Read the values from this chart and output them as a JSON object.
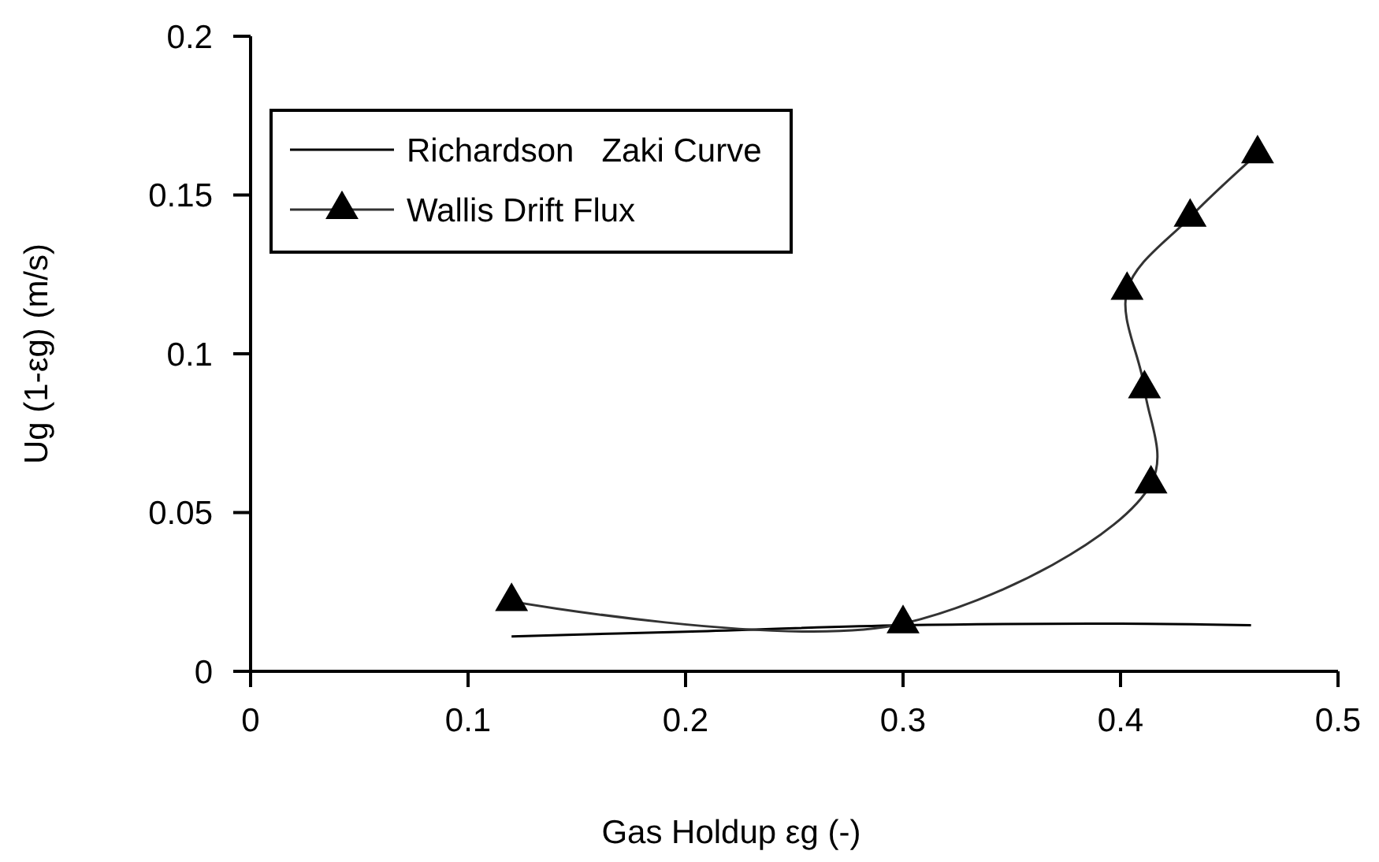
{
  "chart_data": {
    "type": "line",
    "xlabel": "Gas Holdup εg (-)",
    "ylabel": "Ug (1-εg) (m/s)",
    "xlim": [
      0,
      0.5
    ],
    "xticks": [
      0,
      0.1,
      0.2,
      0.3,
      0.4,
      0.5
    ],
    "ylim": [
      0,
      0.2
    ],
    "yticks": [
      0,
      0.05,
      0.1,
      0.15,
      0.2
    ],
    "grid": false,
    "legend": "top left",
    "series": [
      {
        "name": "Richardson   Zaki Curve",
        "color": "#000000",
        "marker": "none",
        "x": [
          0.12,
          0.2,
          0.3,
          0.4,
          0.46
        ],
        "values": [
          0.011,
          0.0125,
          0.0145,
          0.015,
          0.0145
        ]
      },
      {
        "name": "Wallis Drift Flux",
        "color": "#333333",
        "marker": "triangle",
        "x": [
          0.12,
          0.3,
          0.414,
          0.411,
          0.403,
          0.432,
          0.463
        ],
        "values": [
          0.022,
          0.015,
          0.059,
          0.089,
          0.12,
          0.143,
          0.163
        ]
      }
    ]
  }
}
